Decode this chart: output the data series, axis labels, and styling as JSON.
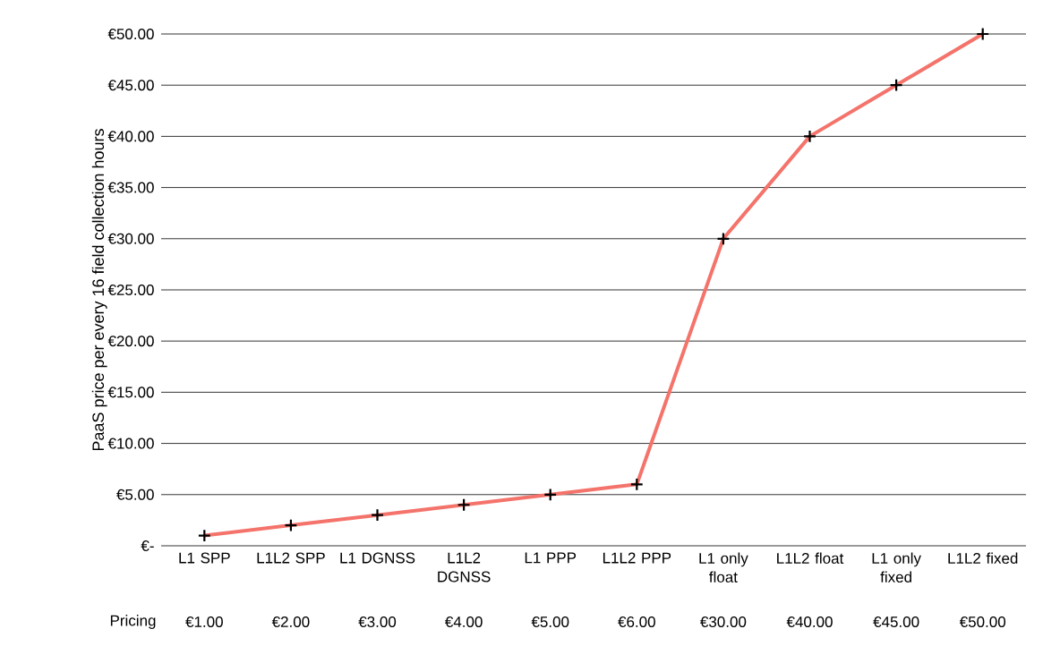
{
  "chart_data": {
    "type": "line",
    "ylabel": "PaaS price per every 16 field collection hours",
    "categories": [
      "L1 SPP",
      "L1L2 SPP",
      "L1 DGNSS",
      "L1L2 DGNSS",
      "L1 PPP",
      "L1L2 PPP",
      "L1 only float",
      "L1L2 float",
      "L1 only fixed",
      "L1L2 fixed"
    ],
    "series": [
      {
        "name": "Pricing",
        "color": "#f4736b",
        "values": [
          1,
          2,
          3,
          4,
          5,
          6,
          30,
          40,
          45,
          50
        ],
        "value_labels": [
          "€1.00",
          "€2.00",
          "€3.00",
          "€4.00",
          "€5.00",
          "€6.00",
          "€30.00",
          "€40.00",
          "€45.00",
          "€50.00"
        ]
      }
    ],
    "ylim": [
      0,
      50
    ],
    "yticks": [
      {
        "value": 0,
        "label": "€-"
      },
      {
        "value": 5,
        "label": "€5.00"
      },
      {
        "value": 10,
        "label": "€10.00"
      },
      {
        "value": 15,
        "label": "€15.00"
      },
      {
        "value": 20,
        "label": "€20.00"
      },
      {
        "value": 25,
        "label": "€25.00"
      },
      {
        "value": 30,
        "label": "€30.00"
      },
      {
        "value": 35,
        "label": "€35.00"
      },
      {
        "value": 40,
        "label": "€40.00"
      },
      {
        "value": 45,
        "label": "€45.00"
      },
      {
        "value": 50,
        "label": "€50.00"
      }
    ],
    "grid": "y",
    "marker": "cross",
    "line_style": "solid"
  }
}
